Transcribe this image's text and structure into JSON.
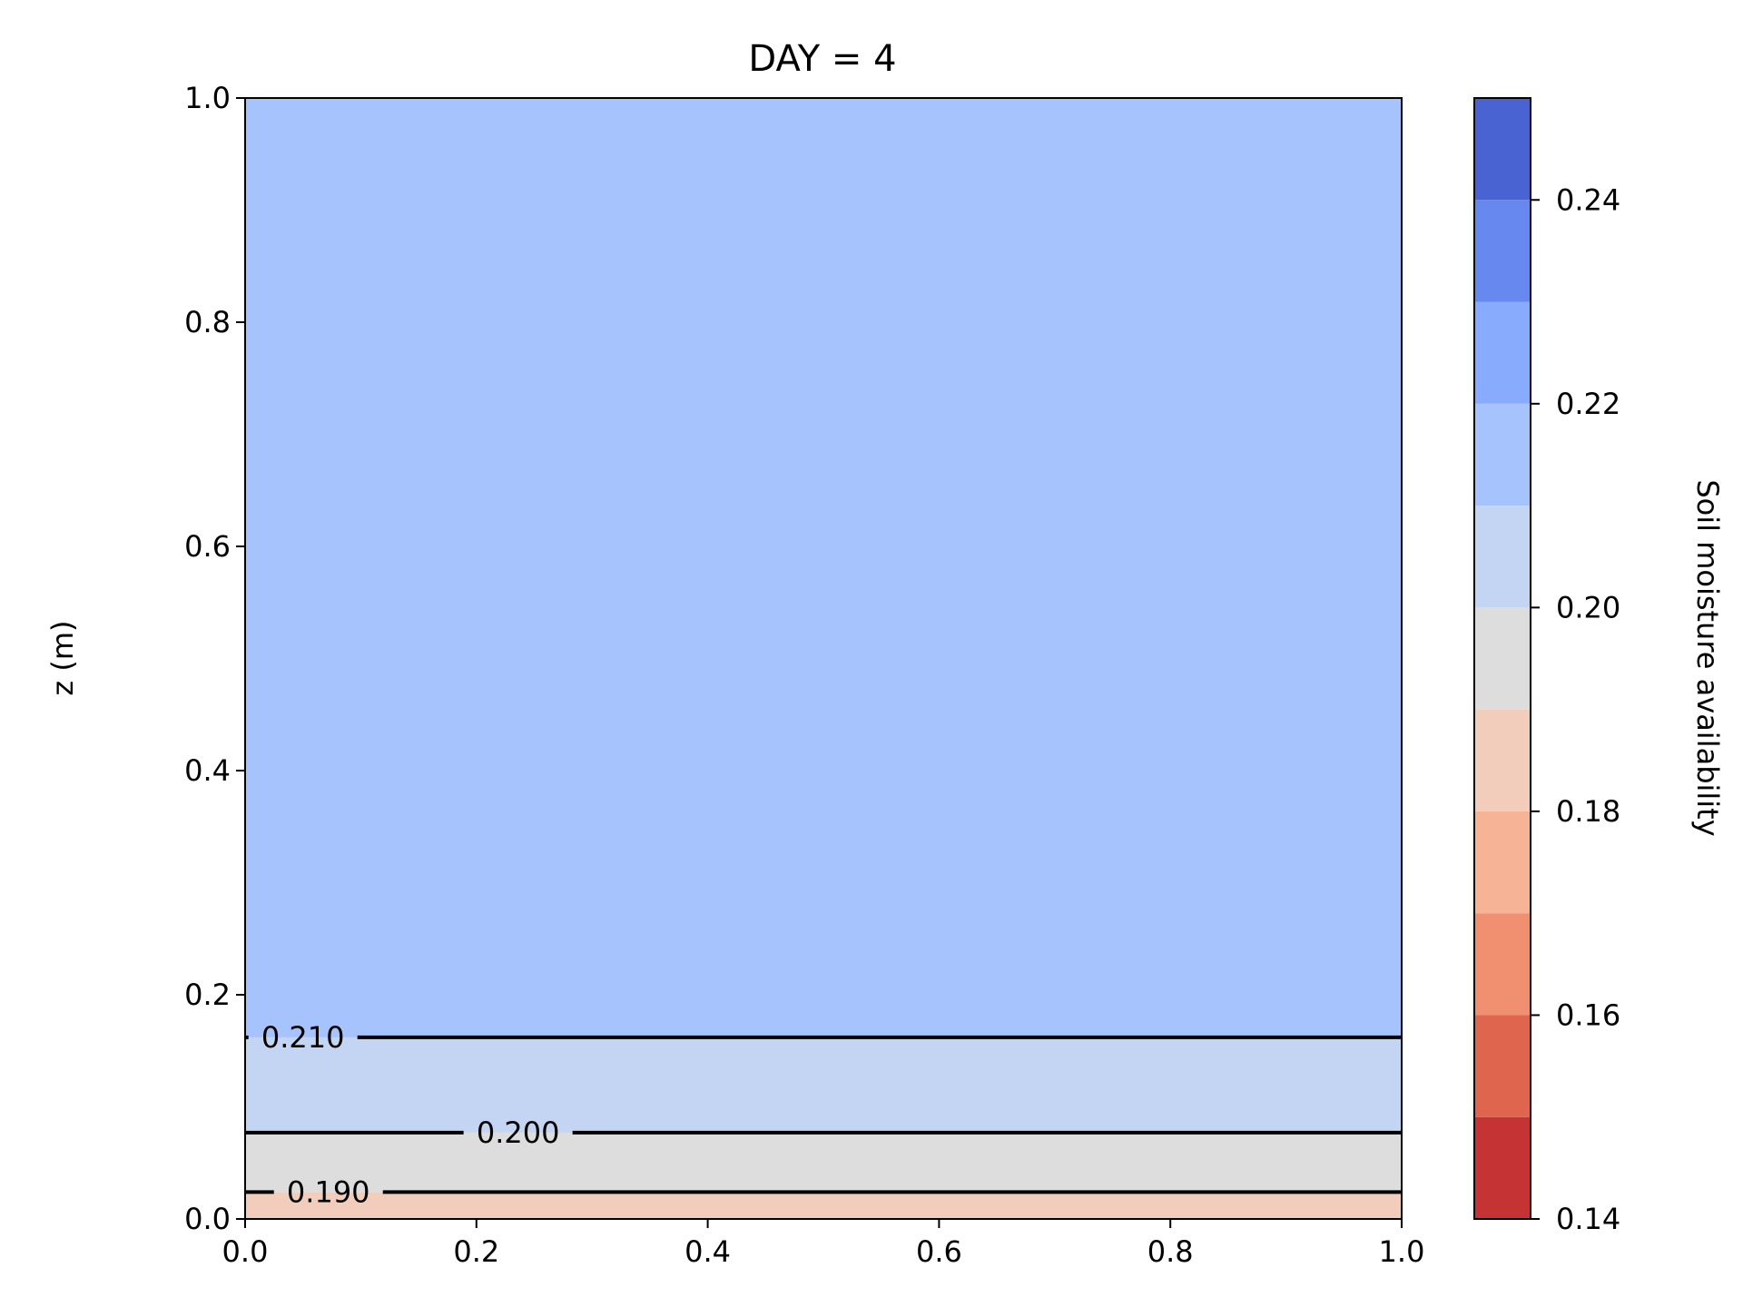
{
  "chart_data": {
    "type": "contour",
    "title": "DAY = 4",
    "xlabel": "",
    "ylabel": "z (m)",
    "xlim": [
      0.0,
      1.0
    ],
    "ylim": [
      0.0,
      1.0
    ],
    "x_ticks": [
      "0.0",
      "0.2",
      "0.4",
      "0.6",
      "0.8",
      "1.0"
    ],
    "y_ticks": [
      "0.0",
      "0.2",
      "0.4",
      "0.6",
      "0.8",
      "1.0"
    ],
    "filled_regions": [
      {
        "y_from": 0.0,
        "y_to": 0.024,
        "value_range": [
          0.18,
          0.19
        ],
        "color": "#f2cdbb"
      },
      {
        "y_from": 0.024,
        "y_to": 0.077,
        "value_range": [
          0.19,
          0.2
        ],
        "color": "#dddddd"
      },
      {
        "y_from": 0.077,
        "y_to": 0.162,
        "value_range": [
          0.2,
          0.21
        ],
        "color": "#c4d5f3"
      },
      {
        "y_from": 0.162,
        "y_to": 1.0,
        "value_range": [
          0.21,
          0.22
        ],
        "color": "#a6c3fd"
      }
    ],
    "contour_lines": [
      {
        "level": 0.19,
        "label": "0.190",
        "y": 0.024,
        "label_x": 0.072
      },
      {
        "level": 0.2,
        "label": "0.200",
        "y": 0.077,
        "label_x": 0.236
      },
      {
        "level": 0.21,
        "label": "0.210",
        "y": 0.162,
        "label_x": 0.05
      }
    ],
    "colorbar": {
      "label": "Soil moisture availability",
      "range": [
        0.14,
        0.25
      ],
      "tick_values": [
        0.14,
        0.16,
        0.18,
        0.2,
        0.22,
        0.24
      ],
      "tick_labels": [
        "0.14",
        "0.16",
        "0.18",
        "0.20",
        "0.22",
        "0.24"
      ],
      "levels": [
        0.14,
        0.15,
        0.16,
        0.17,
        0.18,
        0.19,
        0.2,
        0.21,
        0.22,
        0.23,
        0.24,
        0.25
      ],
      "colors": [
        "#c53334",
        "#e0654f",
        "#f18f71",
        "#f6b396",
        "#f2cdbb",
        "#dddddd",
        "#c4d5f3",
        "#a6c3fd",
        "#88abfd",
        "#6788ee",
        "#4a63d3"
      ]
    }
  }
}
